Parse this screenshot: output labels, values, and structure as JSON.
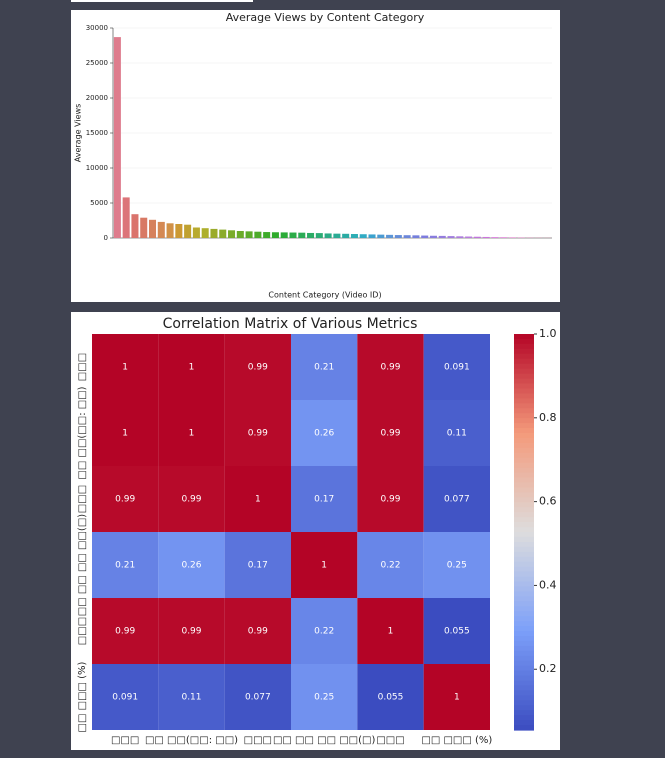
{
  "chart_data": [
    {
      "type": "bar",
      "title": "Average Views by Content Category",
      "xlabel": "Content Category (Video ID)",
      "ylabel": "Average Views",
      "categories": [
        null,
        null,
        null,
        null,
        null,
        null,
        null,
        null,
        null,
        null,
        null,
        null,
        null,
        null,
        null,
        null,
        null,
        null,
        null,
        null,
        null,
        null,
        null,
        null,
        null,
        null,
        null,
        null,
        null,
        null,
        null,
        null,
        null,
        null,
        null,
        null,
        null,
        null,
        null,
        null,
        null,
        null,
        null,
        null,
        null,
        null,
        null,
        null,
        null,
        null
      ],
      "values": [
        28700,
        5800,
        3400,
        2900,
        2600,
        2300,
        2100,
        2000,
        1900,
        1500,
        1400,
        1300,
        1200,
        1100,
        1000,
        950,
        900,
        850,
        820,
        800,
        780,
        760,
        720,
        700,
        650,
        620,
        600,
        570,
        540,
        510,
        480,
        450,
        420,
        400,
        380,
        350,
        320,
        300,
        270,
        240,
        210,
        180,
        150,
        120,
        100,
        80,
        60,
        40,
        30,
        20
      ],
      "colors": [
        "hsl(350,60%,68%)",
        "hsl(357,60%,66%)",
        "hsl(4,60%,64%)",
        "hsl(11,60%,62%)",
        "hsl(18,60%,60%)",
        "hsl(25,60%,58%)",
        "hsl(32,60%,55%)",
        "hsl(40,60%,50%)",
        "hsl(47,60%,47%)",
        "hsl(54,60%,45%)",
        "hsl(61,60%,43%)",
        "hsl(68,60%,42%)",
        "hsl(75,60%,42%)",
        "hsl(83,60%,42%)",
        "hsl(90,60%,42%)",
        "hsl(97,60%,42%)",
        "hsl(104,60%,42%)",
        "hsl(111,60%,42%)",
        "hsl(118,60%,42%)",
        "hsl(126,60%,42%)",
        "hsl(133,60%,42%)",
        "hsl(140,60%,42%)",
        "hsl(147,60%,42%)",
        "hsl(154,60%,42%)",
        "hsl(162,60%,42%)",
        "hsl(169,60%,42%)",
        "hsl(176,60%,42%)",
        "hsl(183,60%,44%)",
        "hsl(190,60%,48%)",
        "hsl(198,60%,52%)",
        "hsl(205,60%,56%)",
        "hsl(212,60%,60%)",
        "hsl(219,60%,62%)",
        "hsl(226,60%,64%)",
        "hsl(234,60%,66%)",
        "hsl(241,60%,68%)",
        "hsl(248,60%,68%)",
        "hsl(255,60%,68%)",
        "hsl(262,60%,68%)",
        "hsl(270,60%,68%)",
        "hsl(277,60%,68%)",
        "hsl(284,60%,66%)",
        "hsl(291,60%,66%)",
        "hsl(298,60%,66%)",
        "hsl(306,60%,66%)",
        "hsl(313,60%,66%)",
        "hsl(320,60%,66%)",
        "hsl(327,60%,66%)",
        "hsl(334,60%,66%)",
        "hsl(342,60%,66%)"
      ],
      "ylim": [
        0,
        30000
      ],
      "yticks": [
        0,
        5000,
        10000,
        15000,
        20000,
        25000,
        30000
      ],
      "grid": true
    },
    {
      "type": "heatmap",
      "title": "Correlation Matrix of Various Metrics",
      "x_categories": [
        "□□□",
        "□□ □□(□□: □□)",
        "□□□",
        "□□ □□ □□ □□(□)",
        "□□□",
        "□□ □□□ (%)"
      ],
      "y_categories": [
        "□□□",
        "□□ □□(□□: □□)",
        "□□□",
        "□□ □□ □□ □□(□)",
        "□□□",
        "□□ □□□ (%)"
      ],
      "values": [
        [
          1,
          1,
          0.99,
          0.21,
          0.99,
          0.091
        ],
        [
          1,
          1,
          0.99,
          0.26,
          0.99,
          0.11
        ],
        [
          0.99,
          0.99,
          1,
          0.17,
          0.99,
          0.077
        ],
        [
          0.21,
          0.26,
          0.17,
          1,
          0.22,
          0.25
        ],
        [
          0.99,
          0.99,
          0.99,
          0.22,
          1,
          0.055
        ],
        [
          0.091,
          0.11,
          0.077,
          0.25,
          0.055,
          1
        ]
      ],
      "colormap": "coolwarm",
      "clim": [
        0.055,
        1
      ],
      "colorbar_ticks": [
        0.2,
        0.4,
        0.6,
        0.8,
        {
          "value": 1,
          "label": "1.0"
        }
      ]
    }
  ]
}
